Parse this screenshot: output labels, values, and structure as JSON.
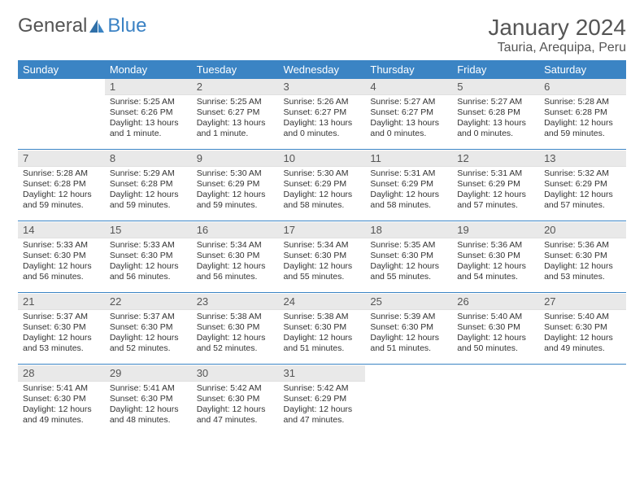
{
  "logo": {
    "text_general": "General",
    "text_blue": "Blue"
  },
  "title": "January 2024",
  "location": "Tauria, Arequipa, Peru",
  "header_bg": "#3b84c4",
  "header_fg": "#ffffff",
  "daynum_bg": "#e9e9e9",
  "rule_color": "#3b84c4",
  "day_labels": [
    "Sunday",
    "Monday",
    "Tuesday",
    "Wednesday",
    "Thursday",
    "Friday",
    "Saturday"
  ],
  "weeks": [
    [
      null,
      {
        "n": "1",
        "sr": "5:25 AM",
        "ss": "6:26 PM",
        "dl": "13 hours and 1 minute."
      },
      {
        "n": "2",
        "sr": "5:25 AM",
        "ss": "6:27 PM",
        "dl": "13 hours and 1 minute."
      },
      {
        "n": "3",
        "sr": "5:26 AM",
        "ss": "6:27 PM",
        "dl": "13 hours and 0 minutes."
      },
      {
        "n": "4",
        "sr": "5:27 AM",
        "ss": "6:27 PM",
        "dl": "13 hours and 0 minutes."
      },
      {
        "n": "5",
        "sr": "5:27 AM",
        "ss": "6:28 PM",
        "dl": "13 hours and 0 minutes."
      },
      {
        "n": "6",
        "sr": "5:28 AM",
        "ss": "6:28 PM",
        "dl": "12 hours and 59 minutes."
      }
    ],
    [
      {
        "n": "7",
        "sr": "5:28 AM",
        "ss": "6:28 PM",
        "dl": "12 hours and 59 minutes."
      },
      {
        "n": "8",
        "sr": "5:29 AM",
        "ss": "6:28 PM",
        "dl": "12 hours and 59 minutes."
      },
      {
        "n": "9",
        "sr": "5:30 AM",
        "ss": "6:29 PM",
        "dl": "12 hours and 59 minutes."
      },
      {
        "n": "10",
        "sr": "5:30 AM",
        "ss": "6:29 PM",
        "dl": "12 hours and 58 minutes."
      },
      {
        "n": "11",
        "sr": "5:31 AM",
        "ss": "6:29 PM",
        "dl": "12 hours and 58 minutes."
      },
      {
        "n": "12",
        "sr": "5:31 AM",
        "ss": "6:29 PM",
        "dl": "12 hours and 57 minutes."
      },
      {
        "n": "13",
        "sr": "5:32 AM",
        "ss": "6:29 PM",
        "dl": "12 hours and 57 minutes."
      }
    ],
    [
      {
        "n": "14",
        "sr": "5:33 AM",
        "ss": "6:30 PM",
        "dl": "12 hours and 56 minutes."
      },
      {
        "n": "15",
        "sr": "5:33 AM",
        "ss": "6:30 PM",
        "dl": "12 hours and 56 minutes."
      },
      {
        "n": "16",
        "sr": "5:34 AM",
        "ss": "6:30 PM",
        "dl": "12 hours and 56 minutes."
      },
      {
        "n": "17",
        "sr": "5:34 AM",
        "ss": "6:30 PM",
        "dl": "12 hours and 55 minutes."
      },
      {
        "n": "18",
        "sr": "5:35 AM",
        "ss": "6:30 PM",
        "dl": "12 hours and 55 minutes."
      },
      {
        "n": "19",
        "sr": "5:36 AM",
        "ss": "6:30 PM",
        "dl": "12 hours and 54 minutes."
      },
      {
        "n": "20",
        "sr": "5:36 AM",
        "ss": "6:30 PM",
        "dl": "12 hours and 53 minutes."
      }
    ],
    [
      {
        "n": "21",
        "sr": "5:37 AM",
        "ss": "6:30 PM",
        "dl": "12 hours and 53 minutes."
      },
      {
        "n": "22",
        "sr": "5:37 AM",
        "ss": "6:30 PM",
        "dl": "12 hours and 52 minutes."
      },
      {
        "n": "23",
        "sr": "5:38 AM",
        "ss": "6:30 PM",
        "dl": "12 hours and 52 minutes."
      },
      {
        "n": "24",
        "sr": "5:38 AM",
        "ss": "6:30 PM",
        "dl": "12 hours and 51 minutes."
      },
      {
        "n": "25",
        "sr": "5:39 AM",
        "ss": "6:30 PM",
        "dl": "12 hours and 51 minutes."
      },
      {
        "n": "26",
        "sr": "5:40 AM",
        "ss": "6:30 PM",
        "dl": "12 hours and 50 minutes."
      },
      {
        "n": "27",
        "sr": "5:40 AM",
        "ss": "6:30 PM",
        "dl": "12 hours and 49 minutes."
      }
    ],
    [
      {
        "n": "28",
        "sr": "5:41 AM",
        "ss": "6:30 PM",
        "dl": "12 hours and 49 minutes."
      },
      {
        "n": "29",
        "sr": "5:41 AM",
        "ss": "6:30 PM",
        "dl": "12 hours and 48 minutes."
      },
      {
        "n": "30",
        "sr": "5:42 AM",
        "ss": "6:30 PM",
        "dl": "12 hours and 47 minutes."
      },
      {
        "n": "31",
        "sr": "5:42 AM",
        "ss": "6:29 PM",
        "dl": "12 hours and 47 minutes."
      },
      null,
      null,
      null
    ]
  ],
  "labels": {
    "sunrise": "Sunrise:",
    "sunset": "Sunset:",
    "daylight": "Daylight:"
  }
}
